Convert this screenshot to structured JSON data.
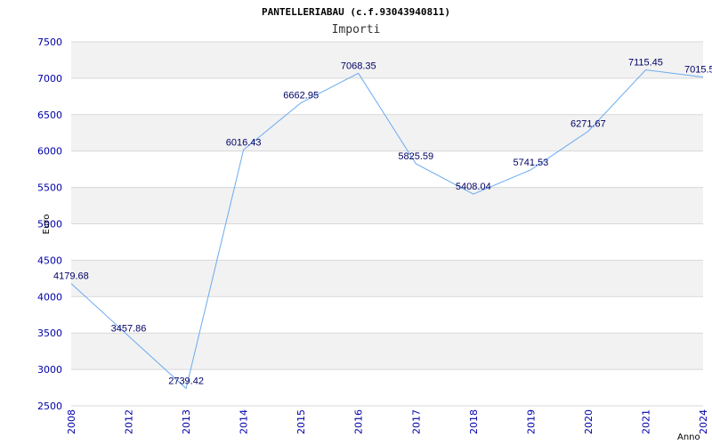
{
  "chart_data": {
    "type": "line",
    "title": "PANTELLERIABAU (c.f.93043940811)",
    "subtitle": "Importi",
    "xlabel": "Anno",
    "ylabel": "Euro",
    "categories": [
      "2008",
      "2012",
      "2013",
      "2014",
      "2015",
      "2016",
      "2017",
      "2018",
      "2019",
      "2020",
      "2021",
      "2024"
    ],
    "series": [
      {
        "name": "Importi",
        "values": [
          4179.68,
          3457.86,
          2739.42,
          6016.43,
          6662.95,
          7068.35,
          5825.59,
          5408.04,
          5741.53,
          6271.67,
          7115.45,
          7015.5
        ],
        "labels": [
          "4179.68",
          "3457.86",
          "2739.42",
          "6016.43",
          "6662.95",
          "7068.35",
          "5825.59",
          "5408.04",
          "5741.53",
          "6271.67",
          "7115.45",
          "7015.5"
        ]
      }
    ],
    "ylim": [
      2500,
      7500
    ],
    "yticks": [
      2500,
      3000,
      3500,
      4000,
      4500,
      5000,
      5500,
      6000,
      6500,
      7000,
      7500
    ],
    "grid": true,
    "colors": {
      "line": "#6aaaf0",
      "band": "#f2f2f2",
      "grid": "#d8d8d8",
      "tick": "#0000aa",
      "label": "#000066"
    }
  }
}
